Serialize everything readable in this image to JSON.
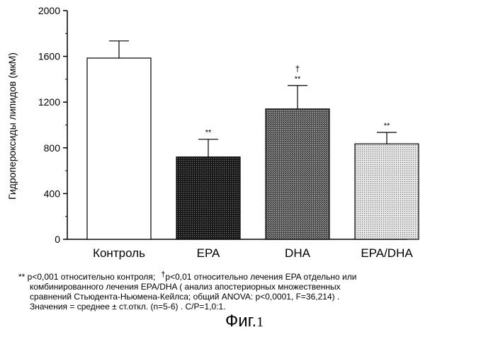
{
  "chart_data": {
    "type": "bar",
    "ylabel": "Гидропероксиды липидов (мкМ)",
    "ylim": [
      0,
      2000
    ],
    "yticks": [
      "0",
      "400",
      "800",
      "1200",
      "1600",
      "2000"
    ],
    "categories": [
      "Контроль",
      "EPA",
      "DHA",
      "EPA/DHA"
    ],
    "values": [
      1585,
      720,
      1140,
      835
    ],
    "errors": [
      150,
      155,
      205,
      100
    ],
    "annotations": [
      "",
      "**",
      "**",
      "**"
    ],
    "annotations_extra": [
      "",
      "",
      "†",
      ""
    ],
    "fills": [
      "white",
      "dark-dots",
      "dense-dots",
      "light-dots"
    ]
  },
  "footnote": {
    "line1_a": "** p<0,001 относительно контроля;",
    "line1_dagger": "†",
    "line1_b": "p<0,01 относительно лечения EPA отдельно или",
    "line2": "комбинированного лечения EPA/DHA ( анализ апостериорных множественных",
    "line3": "сравнений Стьюдента-Ньюмена-Кейлса; общий ANOVA: p<0,0001, F=36,214) .",
    "line4": "Значения = среднее ± ст.откл. (n=5-6) . C/P=1,0:1."
  },
  "caption": {
    "text": "Фиг.",
    "number": "1"
  }
}
